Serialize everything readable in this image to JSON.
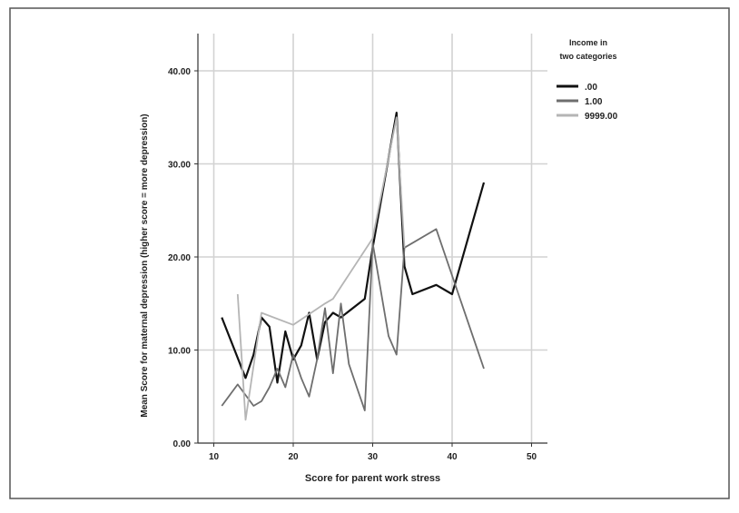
{
  "chart_data": {
    "type": "line",
    "title": "",
    "xlabel": "Score for parent work stress",
    "ylabel": "Mean Score for maternal depression (higher score = more depression)",
    "xlim": [
      8,
      52
    ],
    "ylim": [
      0,
      44
    ],
    "x_ticks": [
      "10",
      "20",
      "30",
      "40",
      "50"
    ],
    "y_ticks": [
      "0.00",
      "10.00",
      "20.00",
      "30.00",
      "40.00"
    ],
    "grid": true,
    "legend": {
      "title_line1": "Income in",
      "title_line2": "two categories",
      "placement": "right"
    },
    "series": [
      {
        "name": ".00",
        "color": "#111111",
        "points": [
          [
            11,
            13.5
          ],
          [
            14,
            7
          ],
          [
            15,
            9.5
          ],
          [
            16,
            13.5
          ],
          [
            17,
            12.5
          ],
          [
            18,
            6.5
          ],
          [
            19,
            12
          ],
          [
            20,
            9
          ],
          [
            21,
            10.5
          ],
          [
            22,
            14
          ],
          [
            23,
            9
          ],
          [
            24,
            13
          ],
          [
            25,
            14
          ],
          [
            26,
            13.5
          ],
          [
            29,
            15.5
          ],
          [
            30,
            21
          ],
          [
            33,
            35.5
          ],
          [
            34,
            19
          ],
          [
            35,
            16
          ],
          [
            38,
            17
          ],
          [
            40,
            16
          ],
          [
            44,
            28
          ]
        ]
      },
      {
        "name": "1.00",
        "color": "#6e6e6e",
        "points": [
          [
            11,
            4
          ],
          [
            13,
            6.3
          ],
          [
            15,
            4
          ],
          [
            16,
            4.5
          ],
          [
            17,
            6
          ],
          [
            18,
            8
          ],
          [
            19,
            6
          ],
          [
            20,
            9.5
          ],
          [
            21,
            7
          ],
          [
            22,
            5
          ],
          [
            23,
            9
          ],
          [
            24,
            14.5
          ],
          [
            25,
            7.5
          ],
          [
            26,
            15
          ],
          [
            27,
            8.5
          ],
          [
            28,
            6
          ],
          [
            29,
            3.5
          ],
          [
            30,
            21.5
          ],
          [
            32,
            11.5
          ],
          [
            33,
            9.5
          ],
          [
            34,
            21
          ],
          [
            38,
            23
          ],
          [
            44,
            8
          ]
        ]
      },
      {
        "name": "9999.00",
        "color": "#b5b5b5",
        "points": [
          [
            13,
            16
          ],
          [
            14,
            2.5
          ],
          [
            16,
            14
          ],
          [
            20,
            12.7
          ],
          [
            24,
            15
          ],
          [
            25,
            15.5
          ],
          [
            30,
            22
          ],
          [
            33,
            35
          ],
          [
            34,
            21
          ]
        ]
      }
    ]
  }
}
